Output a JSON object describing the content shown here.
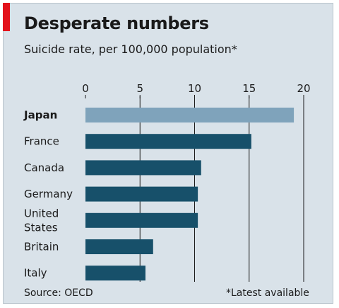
{
  "chart_data": {
    "type": "bar",
    "orientation": "horizontal",
    "title": "Desperate numbers",
    "subtitle": "Suicide rate, per 100,000 population*",
    "categories": [
      "Japan",
      "France",
      "Canada",
      "Germany",
      "United States",
      "Britain",
      "Italy"
    ],
    "category_lines": [
      [
        "Japan"
      ],
      [
        "France"
      ],
      [
        "Canada"
      ],
      [
        "Germany"
      ],
      [
        "United",
        "States"
      ],
      [
        "Britain"
      ],
      [
        "Italy"
      ]
    ],
    "values": [
      19.1,
      15.2,
      10.6,
      10.3,
      10.3,
      6.2,
      5.5
    ],
    "highlight_index": 0,
    "xlim": [
      0,
      20
    ],
    "xticks": [
      0,
      5,
      10,
      15,
      20
    ],
    "grid": true,
    "source": "Source: OECD",
    "footnote": "*Latest available"
  },
  "colors": {
    "background": "#d9e2e9",
    "bar": "#17506a",
    "highlight_bar": "#7fa3bb",
    "gridline": "#1a1a1a",
    "accent": "#e3121b"
  }
}
